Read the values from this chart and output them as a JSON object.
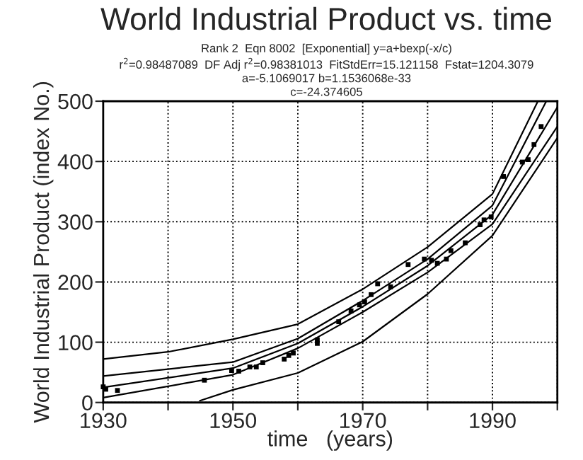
{
  "chart_data": {
    "type": "line",
    "title": "World Industrial Product vs. time",
    "subtitle": "Rank 2  Eqn 8002  [Exponential] y=a+bexp(-x/c)\nr$^{2}$=0.98487089  DF Adj r$^{2}$=0.98381013  FitStdErr=15.121158  Fstat=1204.3079\na=-5.1069017 b=1.1536068e-33\nc=-24.374605",
    "xlabel": "time   (years)",
    "ylabel": "World Industrial Product (index No.)",
    "xlim": [
      1930,
      2000
    ],
    "xticks": [
      1930,
      {
        "value": 1940,
        "label": null
      },
      1950,
      {
        "value": 1960,
        "label": null
      },
      1970,
      {
        "value": 1980,
        "label": null
      },
      1990,
      {
        "value": 2000,
        "label": null
      }
    ],
    "ylim": [
      0,
      500
    ],
    "yticks": [
      0,
      100,
      200,
      300,
      400,
      500
    ],
    "grid": true,
    "series": [
      {
        "type": "scatter",
        "marker": "square",
        "color": "#000000",
        "x": [
          1930,
          1930.4,
          1932.2,
          1945.6,
          1949.8,
          1950.9,
          1952.6,
          1953.6,
          1954.6,
          1957.9,
          1958.6,
          1959.3,
          1963,
          1963,
          1966.3,
          1968.2,
          1969.5,
          1970.3,
          1971.3,
          1972.3,
          1974.3,
          1977,
          1979.5,
          1980.6,
          1981.5,
          1982.9,
          1983.6,
          1985.8,
          1988.1,
          1988.7,
          1989.8,
          1991.7,
          1994.6,
          1995.5,
          1996.4,
          1997.5
        ],
        "values": [
          26,
          22,
          20,
          37,
          53,
          52,
          59,
          59,
          66,
          72,
          78,
          82,
          104,
          98,
          134,
          152,
          162,
          167,
          179,
          197,
          192,
          229,
          238,
          236,
          231,
          238,
          252,
          265,
          295,
          303,
          308,
          375,
          399,
          403,
          428,
          458
        ]
      },
      {
        "color": "#000000",
        "x": [
          1930,
          1940,
          1950,
          1960,
          1970,
          1980,
          1990,
          1997
        ],
        "values": [
          72,
          84,
          105,
          130,
          188,
          258,
          346,
          500
        ]
      },
      {
        "color": "#000000",
        "x": [
          1930,
          1950,
          1960,
          1970,
          1980,
          1990,
          1998.3
        ],
        "values": [
          44,
          67,
          106,
          169,
          238,
          327,
          500
        ]
      },
      {
        "color": "#000000",
        "x": [
          1930,
          1950,
          1960,
          1970,
          1980,
          1990,
          2000
        ],
        "values": [
          25,
          57,
          98,
          159,
          227,
          312,
          490
        ]
      },
      {
        "color": "#000000",
        "x": [
          1930,
          1950,
          1960,
          1970,
          1980,
          1990,
          2000
        ],
        "values": [
          8,
          46,
          90,
          150,
          216,
          296,
          458
        ]
      },
      {
        "color": "#000000",
        "x": [
          1944.9,
          1950,
          1960,
          1970,
          1980,
          1990,
          2000
        ],
        "values": [
          3,
          21,
          49,
          101,
          180,
          277,
          439
        ]
      }
    ]
  }
}
